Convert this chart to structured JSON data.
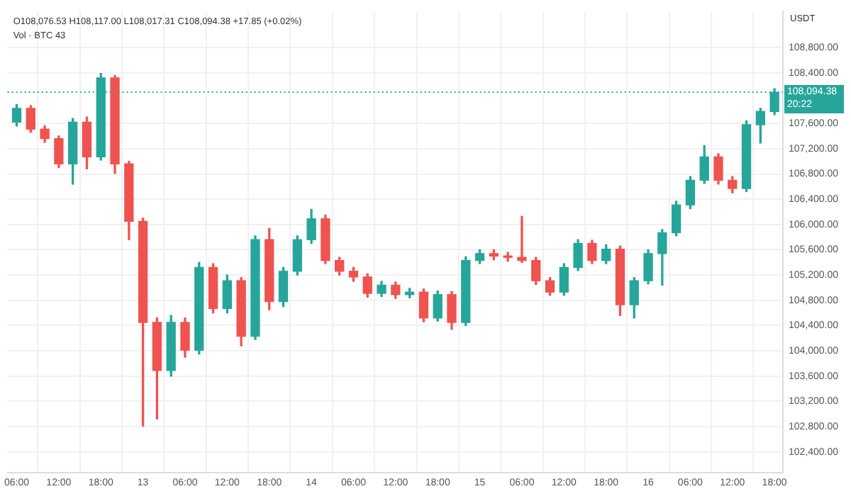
{
  "chart_data": {
    "type": "candlestick",
    "annotations": [
      "O108,076.53 H108,117.00 L108,017.31 C108,094.38 +17.85 (+0.02%)",
      "Vol · BTC 43"
    ],
    "ylabel": "USDT",
    "x": [
      "--06-12T06:00",
      "--06-12T08:00",
      "--06-12T10:00",
      "--06-12T12:00",
      "--06-12T14:00",
      "--06-12T16:00",
      "--06-12T18:00",
      "--06-12T20:00",
      "--06-12T22:00",
      "--06-13T00:00",
      "--06-13T02:00",
      "--06-13T04:00",
      "--06-13T06:00",
      "--06-13T08:00",
      "--06-13T10:00",
      "--06-13T12:00",
      "--06-13T14:00",
      "--06-13T16:00",
      "--06-13T18:00",
      "--06-13T20:00",
      "--06-13T22:00",
      "--06-14T00:00",
      "--06-14T02:00",
      "--06-14T04:00",
      "--06-14T06:00",
      "--06-14T08:00",
      "--06-14T10:00",
      "--06-14T12:00",
      "--06-14T14:00",
      "--06-14T16:00",
      "--06-14T18:00",
      "--06-14T20:00",
      "--06-14T22:00",
      "--06-15T00:00",
      "--06-15T02:00",
      "--06-15T04:00",
      "--06-15T06:00",
      "--06-15T08:00",
      "--06-15T10:00",
      "--06-15T12:00",
      "--06-15T14:00",
      "--06-15T16:00",
      "--06-15T18:00",
      "--06-15T20:00",
      "--06-15T22:00",
      "--06-16T00:00",
      "--06-16T02:00",
      "--06-16T04:00",
      "--06-16T06:00",
      "--06-16T08:00",
      "--06-16T10:00",
      "--06-16T12:00",
      "--06-16T14:00",
      "--06-16T16:00",
      "--06-16T18:00"
    ],
    "ohlc": [
      [
        107620,
        107900,
        107560,
        107840
      ],
      [
        107840,
        107880,
        107460,
        107510
      ],
      [
        107510,
        107560,
        107300,
        107360
      ],
      [
        107360,
        107400,
        106900,
        106960
      ],
      [
        106960,
        107680,
        106640,
        107620
      ],
      [
        107620,
        107700,
        106880,
        107070
      ],
      [
        107070,
        108390,
        107020,
        108320
      ],
      [
        108320,
        108360,
        106810,
        106960
      ],
      [
        106960,
        107000,
        105760,
        106050
      ],
      [
        106050,
        106100,
        102810,
        104450
      ],
      [
        104450,
        104520,
        102920,
        103690
      ],
      [
        103690,
        104560,
        103600,
        104450
      ],
      [
        104450,
        104520,
        103900,
        104010
      ],
      [
        104010,
        105400,
        103950,
        105320
      ],
      [
        105320,
        105380,
        104600,
        104670
      ],
      [
        104670,
        105200,
        104600,
        105110
      ],
      [
        105110,
        105160,
        104080,
        104230
      ],
      [
        104230,
        105820,
        104180,
        105760
      ],
      [
        105760,
        105940,
        104650,
        104780
      ],
      [
        104780,
        105320,
        104700,
        105260
      ],
      [
        105260,
        105820,
        105200,
        105760
      ],
      [
        105760,
        106240,
        105700,
        106090
      ],
      [
        106090,
        106150,
        105380,
        105430
      ],
      [
        105430,
        105480,
        105200,
        105260
      ],
      [
        105260,
        105320,
        105100,
        105170
      ],
      [
        105170,
        105220,
        104850,
        104910
      ],
      [
        104910,
        105100,
        104860,
        105040
      ],
      [
        105040,
        105090,
        104830,
        104890
      ],
      [
        104890,
        104990,
        104840,
        104930
      ],
      [
        104930,
        104980,
        104460,
        104520
      ],
      [
        104520,
        104950,
        104470,
        104890
      ],
      [
        104890,
        104940,
        104340,
        104450
      ],
      [
        104450,
        105490,
        104400,
        105430
      ],
      [
        105430,
        105600,
        105380,
        105540
      ],
      [
        105540,
        105600,
        105440,
        105500
      ],
      [
        105500,
        105560,
        105420,
        105480
      ],
      [
        105480,
        106130,
        105400,
        105430
      ],
      [
        105430,
        105480,
        105050,
        105110
      ],
      [
        105110,
        105160,
        104880,
        104930
      ],
      [
        104930,
        105380,
        104880,
        105320
      ],
      [
        105320,
        105760,
        105270,
        105700
      ],
      [
        105700,
        105750,
        105380,
        105430
      ],
      [
        105430,
        105680,
        105380,
        105610
      ],
      [
        105610,
        105660,
        104560,
        104730
      ],
      [
        104730,
        105160,
        104520,
        105110
      ],
      [
        105110,
        105600,
        105060,
        105540
      ],
      [
        105540,
        105920,
        105040,
        105870
      ],
      [
        105870,
        106370,
        105820,
        106310
      ],
      [
        106310,
        106760,
        106250,
        106700
      ],
      [
        106700,
        107250,
        106650,
        107070
      ],
      [
        107070,
        107120,
        106640,
        106700
      ],
      [
        106700,
        106760,
        106500,
        106570
      ],
      [
        106570,
        107640,
        106520,
        107580
      ],
      [
        107580,
        107840,
        107290,
        107790
      ],
      [
        107790,
        108150,
        107740,
        108094.38
      ]
    ],
    "colors": [
      "#26a69a",
      "#ef5350",
      "#ef5350",
      "#ef5350",
      "#26a69a",
      "#ef5350",
      "#26a69a",
      "#ef5350",
      "#ef5350",
      "#ef5350",
      "#ef5350",
      "#26a69a",
      "#ef5350",
      "#26a69a",
      "#ef5350",
      "#26a69a",
      "#ef5350",
      "#26a69a",
      "#ef5350",
      "#26a69a",
      "#26a69a",
      "#26a69a",
      "#ef5350",
      "#ef5350",
      "#ef5350",
      "#ef5350",
      "#26a69a",
      "#ef5350",
      "#26a69a",
      "#ef5350",
      "#26a69a",
      "#ef5350",
      "#26a69a",
      "#26a69a",
      "#ef5350",
      "#ef5350",
      "#ef5350",
      "#ef5350",
      "#ef5350",
      "#26a69a",
      "#26a69a",
      "#ef5350",
      "#26a69a",
      "#ef5350",
      "#26a69a",
      "#26a69a",
      "#26a69a",
      "#26a69a",
      "#26a69a",
      "#26a69a",
      "#ef5350",
      "#ef5350",
      "#26a69a",
      "#26a69a",
      "#26a69a"
    ],
    "xlim": [
      "--06-12T04:42",
      "--06-16T19:12"
    ],
    "xticks": [
      {
        "value": "--06-12T06:00",
        "label": "06:00"
      },
      {
        "value": "--06-12T12:00",
        "label": "12:00"
      },
      {
        "value": "--06-12T18:00",
        "label": "18:00"
      },
      {
        "value": "--06-13T00:00",
        "label": "13"
      },
      {
        "value": "--06-13T06:00",
        "label": "06:00"
      },
      {
        "value": "--06-13T12:00",
        "label": "12:00"
      },
      {
        "value": "--06-13T18:00",
        "label": "18:00"
      },
      {
        "value": "--06-14T00:00",
        "label": "14"
      },
      {
        "value": "--06-14T06:00",
        "label": "06:00"
      },
      {
        "value": "--06-14T12:00",
        "label": "12:00"
      },
      {
        "value": "--06-14T18:00",
        "label": "18:00"
      },
      {
        "value": "--06-15T00:00",
        "label": "15"
      },
      {
        "value": "--06-15T06:00",
        "label": "06:00"
      },
      {
        "value": "--06-15T12:00",
        "label": "12:00"
      },
      {
        "value": "--06-15T18:00",
        "label": "18:00"
      },
      {
        "value": "--06-16T00:00",
        "label": "16"
      },
      {
        "value": "--06-16T06:00",
        "label": "06:00"
      },
      {
        "value": "--06-16T12:00",
        "label": "12:00"
      },
      {
        "value": "--06-16T18:00",
        "label": "18:00"
      }
    ],
    "ylim": [
      102070,
      109370
    ],
    "yticks": [
      {
        "value": 102400,
        "label": "102,400.00"
      },
      {
        "value": 102800,
        "label": "102,800.00"
      },
      {
        "value": 103200,
        "label": "103,200.00"
      },
      {
        "value": 103600,
        "label": "103,600.00"
      },
      {
        "value": 104000,
        "label": "104,000.00"
      },
      {
        "value": 104400,
        "label": "104,400.00"
      },
      {
        "value": 104800,
        "label": "104,800.00"
      },
      {
        "value": 105200,
        "label": "105,200.00"
      },
      {
        "value": 105600,
        "label": "105,600.00"
      },
      {
        "value": 106000,
        "label": "106,000.00"
      },
      {
        "value": 106400,
        "label": "106,400.00"
      },
      {
        "value": 106800,
        "label": "106,800.00"
      },
      {
        "value": 107200,
        "label": "107,200.00"
      },
      {
        "value": 107600,
        "label": "107,600.00"
      },
      {
        "value": 108400,
        "label": "108,400.00"
      },
      {
        "value": 108800,
        "label": "108,800.00"
      }
    ],
    "ref_lines": [
      {
        "axis": "y",
        "value": 108094.38,
        "label": "108,094.38\n20:22",
        "color": "#26a69a",
        "line_style": "dotted"
      }
    ],
    "grid": true,
    "legend": false
  }
}
